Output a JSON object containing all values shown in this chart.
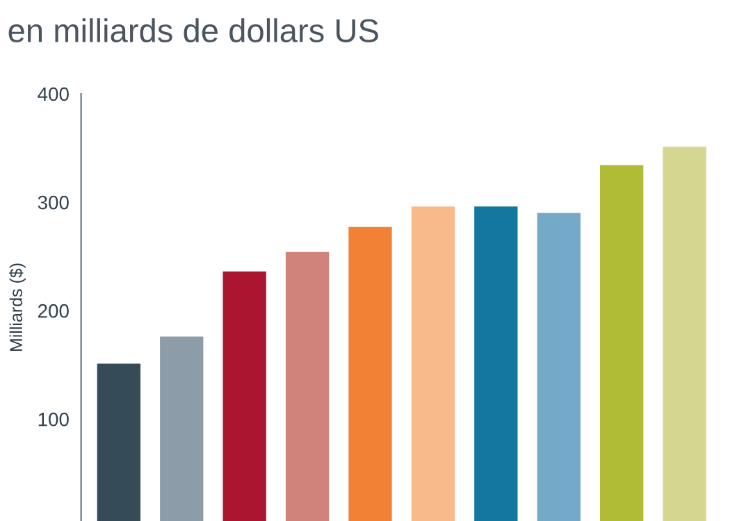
{
  "chart_data": {
    "type": "bar",
    "title": "en milliards de dollars US",
    "ylabel": "Milliards ($)",
    "categories": [
      null,
      null,
      null,
      null,
      null,
      null,
      null,
      null,
      null,
      null
    ],
    "values": [
      152,
      177,
      237,
      255,
      278,
      297,
      297,
      291,
      335,
      352
    ],
    "colors": [
      "#354b58",
      "#8c9ca8",
      "#ab1530",
      "#d0837a",
      "#f28135",
      "#f8ba8a",
      "#13779f",
      "#74aac7",
      "#b0bb36",
      "#d5d791"
    ],
    "ylim": [
      6,
      400
    ],
    "yticks": [
      100,
      200,
      300,
      400
    ],
    "grid": false
  }
}
